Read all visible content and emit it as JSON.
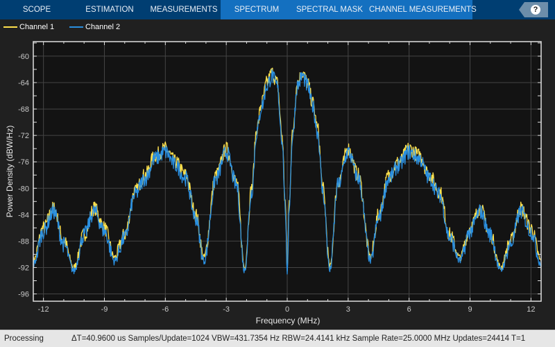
{
  "toolbar": {
    "tabs": [
      {
        "label": "SCOPE"
      },
      {
        "label": "ESTIMATION"
      },
      {
        "label": "MEASUREMENTS"
      },
      {
        "label": "SPECTRUM"
      },
      {
        "label": "SPECTRAL MASK"
      },
      {
        "label": "CHANNEL MEASUREMENTS"
      }
    ],
    "help_label": "?",
    "colors": {
      "bar": "#003e72",
      "active": "#1470c0"
    }
  },
  "status": {
    "state": "Processing",
    "info": "ΔT=40.9600 us  Samples/Update=1024  VBW=431.7354 Hz  RBW=24.4141 kHz  Sample Rate=25.0000 MHz  Updates=24414  T=1"
  },
  "chart_data": {
    "type": "line",
    "xlabel": "Frequency (MHz)",
    "ylabel": "Power Density (dBW/Hz)",
    "xlim": [
      -12.5,
      12.5
    ],
    "ylim": [
      -97.1,
      -57.8
    ],
    "xticks": [
      -12,
      -9,
      -6,
      -3,
      0,
      3,
      6,
      9,
      12
    ],
    "yticks": [
      -60,
      -64,
      -68,
      -72,
      -76,
      -80,
      -84,
      -88,
      -92,
      -96
    ],
    "grid": true,
    "legend": "top-left",
    "x": [
      -12.5,
      -12,
      -11.5,
      -11,
      -10.5,
      -10,
      -9.5,
      -9,
      -8.5,
      -8,
      -7.5,
      -7,
      -6.5,
      -6,
      -5.5,
      -5,
      -4.5,
      -4.1,
      -3.5,
      -3,
      -2.5,
      -2.1,
      -1.75,
      -1.5,
      -1.25,
      -1,
      -0.75,
      -0.5,
      -0.25,
      -0.1,
      0,
      0.1,
      0.25,
      0.5,
      0.75,
      1,
      1.25,
      1.5,
      1.75,
      2.1,
      2.5,
      3,
      3.5,
      4.1,
      4.5,
      5,
      5.5,
      6,
      6.5,
      7,
      7.5,
      8,
      8.5,
      9,
      9.5,
      10,
      10.5,
      11,
      11.5,
      12,
      12.5
    ],
    "series": [
      {
        "name": "Channel 1",
        "color": "#ffe14d",
        "values": [
          -91,
          -86,
          -83,
          -88,
          -92,
          -87,
          -83,
          -86,
          -90.5,
          -87,
          -80.5,
          -78,
          -75,
          -74,
          -76,
          -78,
          -84,
          -90.5,
          -78,
          -74,
          -79,
          -92,
          -80,
          -71,
          -67,
          -64,
          -62.5,
          -64,
          -72,
          -82,
          -92.5,
          -82,
          -72,
          -64,
          -62.5,
          -64,
          -67,
          -71,
          -80,
          -92,
          -79,
          -74,
          -78,
          -90.5,
          -84,
          -78,
          -76,
          -74,
          -75,
          -78,
          -80.5,
          -87,
          -90.5,
          -86,
          -83,
          -87,
          -92,
          -88,
          -83,
          -86,
          -91
        ]
      },
      {
        "name": "Channel 2",
        "color": "#2a8fe0",
        "values": [
          -91.5,
          -86.5,
          -83.5,
          -88.5,
          -92.5,
          -87,
          -83.5,
          -86.5,
          -91,
          -87.5,
          -81,
          -78.5,
          -75.5,
          -74.5,
          -76.5,
          -78.5,
          -84.5,
          -91,
          -78.5,
          -74.5,
          -79.5,
          -92.5,
          -80.5,
          -71.5,
          -67.5,
          -64.5,
          -63,
          -64.5,
          -72.5,
          -82.5,
          -93,
          -82.5,
          -72.5,
          -64.5,
          -63,
          -64.5,
          -67.5,
          -71.5,
          -80.5,
          -92.5,
          -79.5,
          -74.5,
          -78.5,
          -91,
          -84.5,
          -78.5,
          -76.5,
          -74.5,
          -75.5,
          -78.5,
          -81,
          -87.5,
          -91,
          -86.5,
          -83.5,
          -87,
          -92.5,
          -88.5,
          -83.5,
          -86.5,
          -91.5
        ]
      }
    ]
  }
}
